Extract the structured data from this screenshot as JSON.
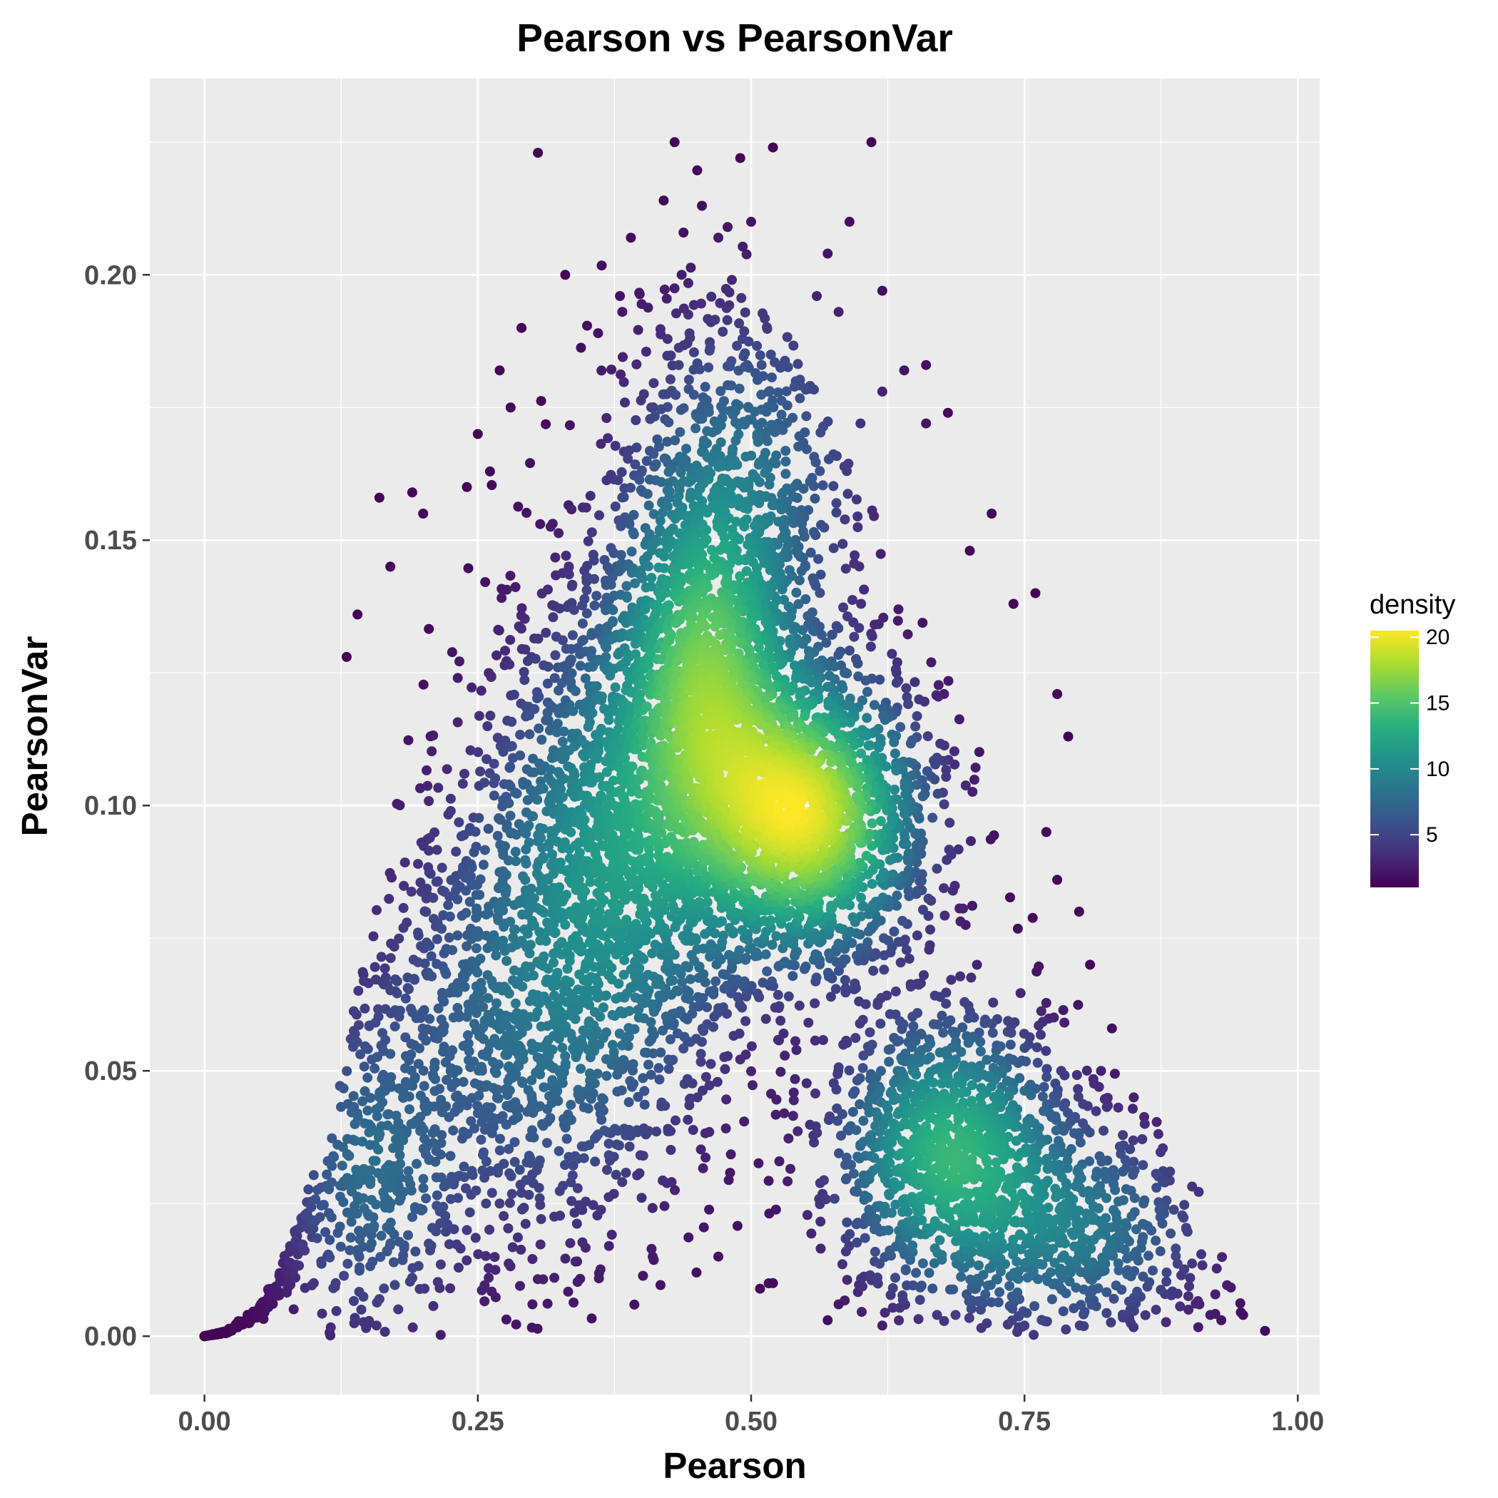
{
  "chart_data": {
    "type": "scatter",
    "title": "Pearson vs PearsonVar",
    "xlabel": "Pearson",
    "ylabel": "PearsonVar",
    "xlim": [
      -0.05,
      1.02
    ],
    "ylim": [
      -0.011,
      0.237
    ],
    "x_ticks": [
      0.0,
      0.25,
      0.5,
      0.75,
      1.0
    ],
    "x_tick_labels": [
      "0.00",
      "0.25",
      "0.50",
      "0.75",
      "1.00"
    ],
    "y_ticks": [
      0.0,
      0.05,
      0.1,
      0.15,
      0.2
    ],
    "y_tick_labels": [
      "0.00",
      "0.05",
      "0.10",
      "0.15",
      "0.20"
    ],
    "grid": true,
    "panel_background": "#ebebeb",
    "grid_color": "#ffffff",
    "color_scale": "viridis",
    "legend": {
      "title": "density",
      "placement": "right",
      "range": [
        1,
        20.5
      ],
      "ticks": [
        5,
        10,
        15,
        20
      ],
      "tick_labels": [
        "5",
        "10",
        "15",
        "20"
      ]
    },
    "density_clusters": [
      {
        "x": 0.55,
        "y": 0.098,
        "sx": 0.06,
        "sy": 0.015,
        "weight": 0.22
      },
      {
        "x": 0.46,
        "y": 0.125,
        "sx": 0.05,
        "sy": 0.022,
        "weight": 0.18
      },
      {
        "x": 0.38,
        "y": 0.095,
        "sx": 0.07,
        "sy": 0.025,
        "weight": 0.16
      },
      {
        "x": 0.68,
        "y": 0.035,
        "sx": 0.06,
        "sy": 0.015,
        "weight": 0.13
      },
      {
        "x": 0.3,
        "y": 0.06,
        "sx": 0.09,
        "sy": 0.025,
        "weight": 0.13
      },
      {
        "x": 0.5,
        "y": 0.165,
        "sx": 0.07,
        "sy": 0.02,
        "weight": 0.07
      },
      {
        "x": 0.8,
        "y": 0.02,
        "sx": 0.07,
        "sy": 0.012,
        "weight": 0.06
      },
      {
        "x": 0.15,
        "y": 0.03,
        "sx": 0.05,
        "sy": 0.018,
        "weight": 0.05
      }
    ],
    "boundary_curve": [
      [
        0.0,
        0.0
      ],
      [
        0.02,
        0.001
      ],
      [
        0.05,
        0.006
      ],
      [
        0.08,
        0.018
      ],
      [
        0.12,
        0.045
      ],
      [
        0.16,
        0.085
      ],
      [
        0.2,
        0.13
      ],
      [
        0.25,
        0.17
      ],
      [
        0.3,
        0.2
      ],
      [
        0.35,
        0.215
      ],
      [
        0.43,
        0.225
      ]
    ],
    "sparse_points": [
      [
        0.43,
        0.225
      ],
      [
        0.52,
        0.224
      ],
      [
        0.61,
        0.225
      ],
      [
        0.305,
        0.223
      ],
      [
        0.49,
        0.222
      ],
      [
        0.42,
        0.214
      ],
      [
        0.455,
        0.213
      ],
      [
        0.59,
        0.21
      ],
      [
        0.97,
        0.001
      ],
      [
        0.92,
        0.004
      ],
      [
        0.9,
        0.005
      ],
      [
        0.93,
        0.003
      ],
      [
        0.57,
        0.003
      ],
      [
        0.75,
        0.002
      ],
      [
        0.62,
        0.002
      ],
      [
        0.16,
        0.158
      ],
      [
        0.19,
        0.159
      ],
      [
        0.17,
        0.145
      ],
      [
        0.13,
        0.128
      ],
      [
        0.14,
        0.136
      ],
      [
        0.72,
        0.155
      ],
      [
        0.76,
        0.14
      ],
      [
        0.79,
        0.113
      ],
      [
        0.8,
        0.08
      ],
      [
        0.81,
        0.07
      ],
      [
        0.83,
        0.058
      ],
      [
        0.85,
        0.045
      ],
      [
        0.86,
        0.04
      ],
      [
        0.3,
        0.006
      ],
      [
        0.26,
        0.011
      ],
      [
        0.32,
        0.011
      ],
      [
        0.16,
        0.007
      ],
      [
        0.19,
        0.011
      ],
      [
        0.47,
        0.015
      ],
      [
        0.41,
        0.015
      ],
      [
        0.52,
        0.01
      ],
      [
        0.66,
        0.183
      ],
      [
        0.64,
        0.182
      ],
      [
        0.68,
        0.174
      ],
      [
        0.62,
        0.197
      ],
      [
        0.39,
        0.207
      ],
      [
        0.33,
        0.2
      ],
      [
        0.29,
        0.19
      ],
      [
        0.27,
        0.182
      ],
      [
        0.28,
        0.175
      ],
      [
        0.25,
        0.17
      ],
      [
        0.24,
        0.16
      ],
      [
        0.2,
        0.155
      ],
      [
        0.7,
        0.148
      ],
      [
        0.74,
        0.138
      ],
      [
        0.78,
        0.121
      ],
      [
        0.77,
        0.095
      ],
      [
        0.78,
        0.086
      ],
      [
        0.82,
        0.05
      ],
      [
        0.84,
        0.031
      ],
      [
        0.87,
        0.018
      ],
      [
        0.88,
        0.012
      ],
      [
        0.89,
        0.008
      ],
      [
        0.91,
        0.006
      ],
      [
        0.95,
        0.004
      ],
      [
        0.24,
        0.02
      ],
      [
        0.27,
        0.025
      ],
      [
        0.29,
        0.027
      ],
      [
        0.37,
        0.017
      ],
      [
        0.45,
        0.012
      ],
      [
        0.58,
        0.006
      ],
      [
        0.67,
        0.004
      ],
      [
        0.71,
        0.005
      ],
      [
        0.1,
        0.01
      ],
      [
        0.12,
        0.01
      ],
      [
        0.36,
        0.189
      ],
      [
        0.38,
        0.196
      ],
      [
        0.47,
        0.207
      ],
      [
        0.5,
        0.21
      ],
      [
        0.57,
        0.204
      ],
      [
        0.56,
        0.196
      ],
      [
        0.58,
        0.193
      ],
      [
        0.62,
        0.178
      ],
      [
        0.66,
        0.172
      ],
      [
        0.6,
        0.172
      ]
    ]
  }
}
